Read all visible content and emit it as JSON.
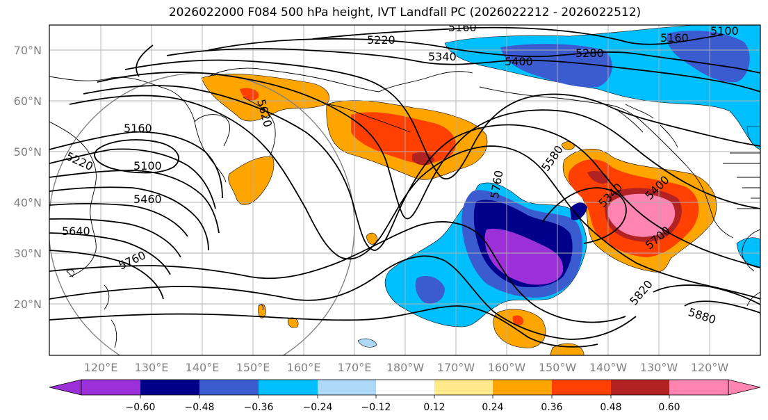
{
  "title": "2026022000 F084 500 hPa height, IVT Landfall PC (2026022212 - 2026022512)",
  "lat_labels": [
    "70°N",
    "60°N",
    "50°N",
    "40°N",
    "30°N",
    "20°N"
  ],
  "lon_labels": [
    "120°E",
    "130°E",
    "140°E",
    "150°E",
    "160°E",
    "170°E",
    "180°W",
    "170°W",
    "160°W",
    "150°W",
    "140°W",
    "130°W",
    "120°W"
  ],
  "contour_labels": [
    "5160",
    "5220",
    "5340",
    "5400",
    "5280",
    "5160",
    "5100",
    "5620",
    "5160",
    "5100",
    "5220",
    "5460",
    "5640",
    "5760",
    "5760",
    "5580",
    "5340",
    "5400",
    "5700",
    "5820",
    "5880"
  ],
  "colorbar": {
    "ticks": [
      "−0.60",
      "−0.48",
      "−0.36",
      "−0.24",
      "−0.12",
      "0.12",
      "0.24",
      "0.36",
      "0.48",
      "0.60"
    ],
    "colors": [
      "#9b30d9",
      "#00008b",
      "#3b5bd0",
      "#00bfff",
      "#add8f6",
      "#ffffff",
      "#ffe98a",
      "#ffa500",
      "#ff4000",
      "#b22222",
      "#ff85b0"
    ]
  },
  "fill_colors": {
    "purple": "#9b30d9",
    "navy": "#00008b",
    "royal": "#3b5bd0",
    "sky": "#00bfff",
    "pale": "#add8f6",
    "yellow": "#ffe98a",
    "orange": "#ffa500",
    "redorange": "#ff4000",
    "darkred": "#b22222",
    "pink": "#ff85b0"
  }
}
